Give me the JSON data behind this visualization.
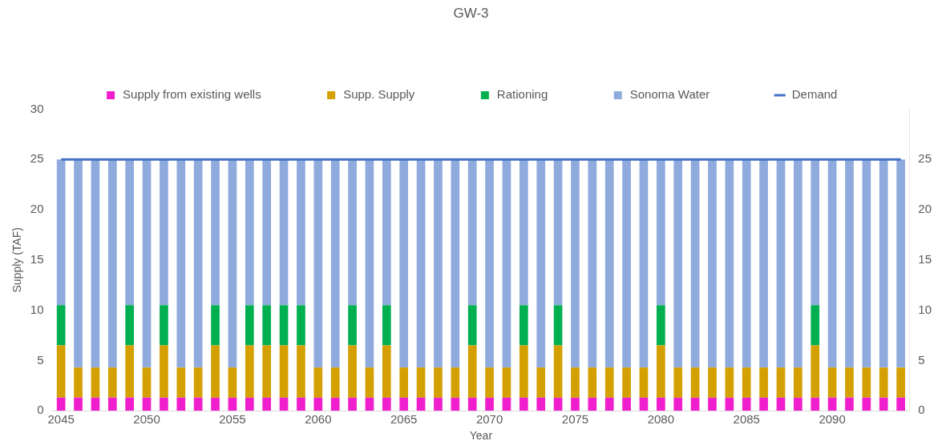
{
  "chart_data": {
    "type": "bar",
    "title": "GW-3",
    "xlabel": "Year",
    "ylabel": "Supply (TAF)",
    "stacked": true,
    "legend": "top",
    "grid": false,
    "categories": [
      "2045",
      null,
      null,
      null,
      null,
      "2050",
      null,
      null,
      null,
      null,
      "2055",
      null,
      null,
      null,
      null,
      "2060",
      null,
      null,
      null,
      null,
      "2065",
      null,
      null,
      null,
      null,
      "2070",
      null,
      null,
      null,
      null,
      "2075",
      null,
      null,
      null,
      null,
      "2080",
      null,
      null,
      null,
      null,
      "2085",
      null,
      null,
      null,
      null,
      "2090",
      null,
      null,
      null,
      null
    ],
    "ylim": [
      0,
      30
    ],
    "yticks": [
      0,
      5,
      10,
      15,
      20,
      25,
      30
    ],
    "y2lim": [
      0,
      30
    ],
    "y2ticks": [
      0,
      5,
      10,
      15,
      20,
      25
    ],
    "series": [
      {
        "name": "Supply from existing wells",
        "color": "#f01fce",
        "values": [
          1.3,
          1.3,
          1.3,
          1.3,
          1.3,
          1.3,
          1.3,
          1.3,
          1.3,
          1.3,
          1.3,
          1.3,
          1.3,
          1.3,
          1.3,
          1.3,
          1.3,
          1.3,
          1.3,
          1.3,
          1.3,
          1.3,
          1.3,
          1.3,
          1.3,
          1.3,
          1.3,
          1.3,
          1.3,
          1.3,
          1.3,
          1.3,
          1.3,
          1.3,
          1.3,
          1.3,
          1.3,
          1.3,
          1.3,
          1.3,
          1.3,
          1.3,
          1.3,
          1.3,
          1.3,
          1.3,
          1.3,
          1.3,
          1.3,
          1.3
        ]
      },
      {
        "name": "Supp. Supply",
        "color": "#d4a000",
        "values": [
          5.2,
          3,
          3,
          3,
          5.2,
          3,
          5.2,
          3,
          3,
          5.2,
          3,
          5.2,
          5.2,
          5.2,
          5.2,
          3,
          3,
          5.2,
          3,
          5.2,
          3,
          3,
          3,
          3,
          5.2,
          3,
          3,
          5.2,
          3,
          5.2,
          3,
          3,
          3,
          3,
          3,
          5.2,
          3,
          3,
          3,
          3,
          3,
          3,
          3,
          3,
          5.2,
          3,
          3,
          3,
          3,
          3
        ]
      },
      {
        "name": "Rationing",
        "color": "#00b050",
        "values": [
          4,
          null,
          null,
          null,
          4,
          null,
          4,
          null,
          null,
          4,
          null,
          4,
          4,
          4,
          4,
          null,
          null,
          4,
          null,
          4,
          null,
          null,
          null,
          null,
          4,
          null,
          null,
          4,
          null,
          4,
          null,
          null,
          null,
          null,
          null,
          4,
          null,
          null,
          null,
          null,
          null,
          null,
          null,
          null,
          4,
          null,
          null,
          null,
          null,
          null
        ]
      },
      {
        "name": "Sonoma Water",
        "color": "#8faadc",
        "values": [
          14.5,
          20.7,
          20.7,
          20.7,
          14.5,
          20.7,
          14.5,
          20.7,
          20.7,
          14.5,
          20.7,
          14.5,
          14.5,
          14.5,
          14.5,
          20.7,
          20.7,
          14.5,
          20.7,
          14.5,
          20.7,
          20.7,
          20.7,
          20.7,
          14.5,
          20.7,
          20.7,
          14.5,
          20.7,
          14.5,
          20.7,
          20.7,
          20.7,
          20.7,
          20.7,
          14.5,
          20.7,
          20.7,
          20.7,
          20.7,
          20.7,
          20.7,
          20.7,
          20.7,
          14.5,
          20.7,
          20.7,
          20.7,
          20.7,
          20.7
        ]
      },
      {
        "name": "Demand",
        "type": "line",
        "color": "#4472c4",
        "values": [
          25,
          25,
          25,
          25,
          25,
          25,
          25,
          25,
          25,
          25,
          25,
          25,
          25,
          25,
          25,
          25,
          25,
          25,
          25,
          25,
          25,
          25,
          25,
          25,
          25,
          25,
          25,
          25,
          25,
          25,
          25,
          25,
          25,
          25,
          25,
          25,
          25,
          25,
          25,
          25,
          25,
          25,
          25,
          25,
          25,
          25,
          25,
          25,
          25,
          25
        ]
      }
    ]
  }
}
